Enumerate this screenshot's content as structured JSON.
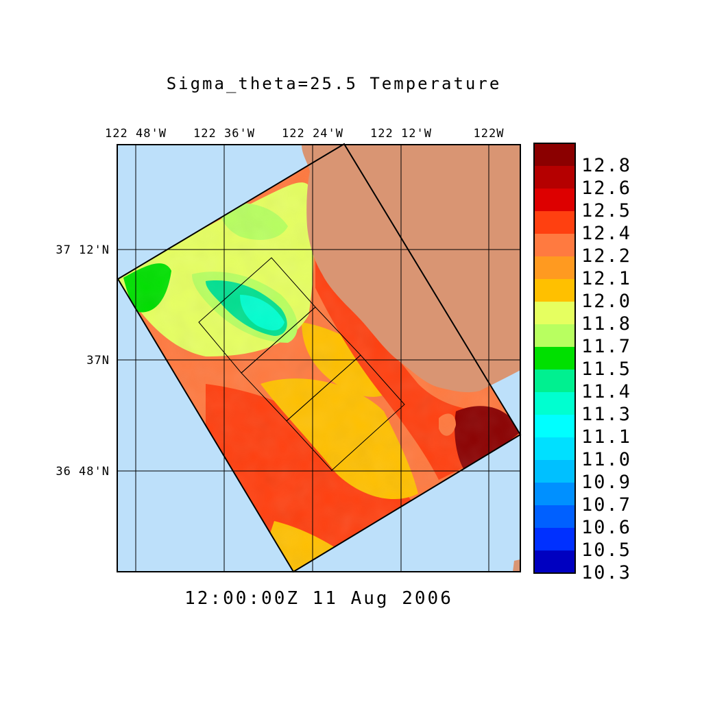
{
  "title": "Sigma_theta=25.5 Temperature",
  "time_label": "12:00:00Z  11 Aug 2006",
  "colors": {
    "ocean_outside": "#bde0fa",
    "land": "#d99573",
    "grid": "#000000"
  },
  "lon_labels": [
    "122 48'W",
    "122 36'W",
    "122 24'W",
    "122 12'W",
    "122W"
  ],
  "lat_labels": [
    "37 12'N",
    "37N",
    "36 48'N"
  ],
  "colorbar": {
    "labels": [
      "12.8",
      "12.6",
      "12.5",
      "12.4",
      "12.2",
      "12.1",
      "12.0",
      "11.8",
      "11.7",
      "11.5",
      "11.4",
      "11.3",
      "11.1",
      "11.0",
      "10.9",
      "10.7",
      "10.6",
      "10.5",
      "10.3"
    ],
    "colors": [
      "#8b0000",
      "#b50000",
      "#dd0000",
      "#ff4010",
      "#ff7a40",
      "#ff9a20",
      "#ffc000",
      "#e6ff60",
      "#b8ff60",
      "#00e000",
      "#00f090",
      "#00ffd0",
      "#00ffff",
      "#00e0ff",
      "#00c0ff",
      "#0090ff",
      "#0060ff",
      "#0030ff",
      "#0000c0"
    ]
  }
}
